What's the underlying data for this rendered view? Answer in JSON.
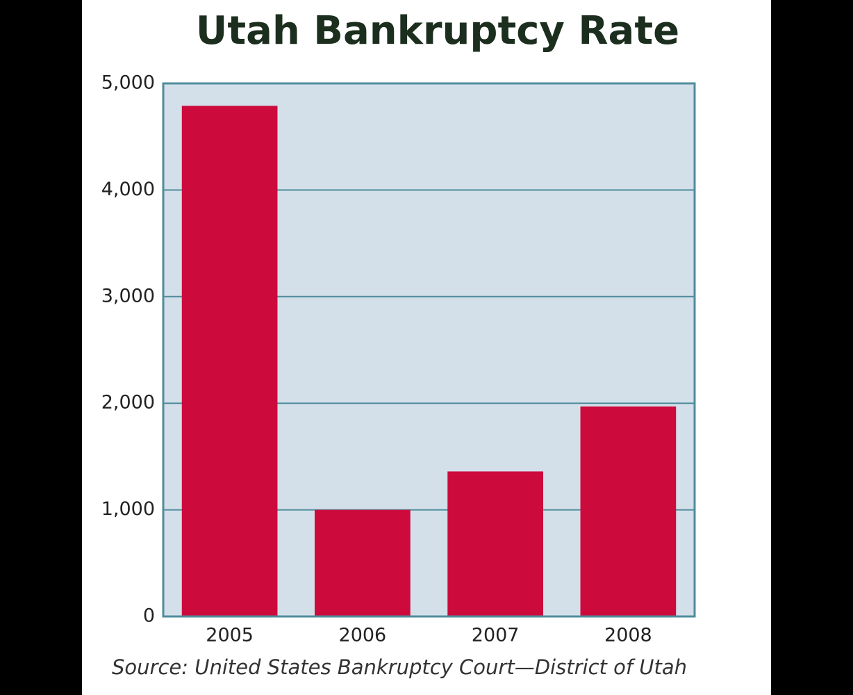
{
  "chart_data": {
    "type": "bar",
    "title": "Utah Bankruptcy Rate",
    "categories": [
      "2005",
      "2006",
      "2007",
      "2008"
    ],
    "values": [
      4790,
      1000,
      1360,
      1970
    ],
    "color": "#cc0a3c",
    "ylim": [
      0,
      5000
    ],
    "yticks": [
      0,
      {
        "value": 1000,
        "label": "1,000"
      },
      {
        "value": 2000,
        "label": "2,000"
      },
      {
        "value": 3000,
        "label": "3,000"
      },
      {
        "value": 4000,
        "label": "4,000"
      },
      {
        "value": 5000,
        "label": "5,000"
      }
    ],
    "grid": true,
    "source": "Source: United States Bankruptcy Court—District of Utah"
  }
}
